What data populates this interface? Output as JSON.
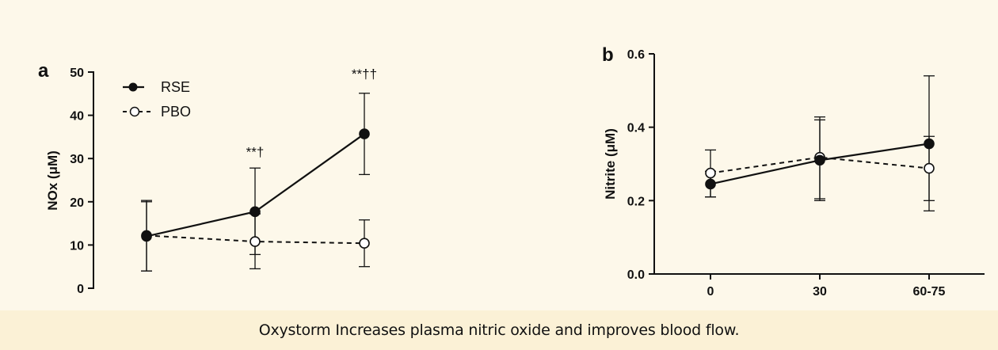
{
  "caption": "Oxystorm Increases plasma nitric oxide and improves blood flow.",
  "colors": {
    "background": "#fdf8ea",
    "caption_bar": "#fbf1d6",
    "ink": "#111111"
  },
  "chart_data": [
    {
      "panel": "a",
      "type": "line",
      "ylabel": "NOx (μM)",
      "ylim": [
        0,
        50
      ],
      "yticks": [
        "0",
        "10",
        "20",
        "30",
        "40",
        "50"
      ],
      "x": [
        0,
        1,
        2
      ],
      "xtick_labels": [],
      "legend_position": "top-left",
      "series": [
        {
          "name": "RSE",
          "style": "solid",
          "marker": "filled-circle",
          "values": [
            12,
            17.7,
            35.7
          ],
          "err_low": [
            4,
            7.8,
            26.3
          ],
          "err_high": [
            20.3,
            27.8,
            45.1
          ]
        },
        {
          "name": "PBO",
          "style": "dashed",
          "marker": "open-circle",
          "values": [
            12.2,
            10.8,
            10.4
          ],
          "err_low": [
            4,
            4.5,
            5
          ],
          "err_high": [
            20,
            17.2,
            15.8
          ]
        }
      ],
      "annotations": [
        {
          "x": 1,
          "y": 30.5,
          "text": "**†"
        },
        {
          "x": 2,
          "y": 48.5,
          "text": "**††"
        }
      ]
    },
    {
      "panel": "b",
      "type": "line",
      "ylabel": "Nitrite (μM)",
      "ylim": [
        0,
        0.6
      ],
      "yticks": [
        "0.0",
        "0.2",
        "0.4",
        "0.6"
      ],
      "x": [
        0,
        1,
        2
      ],
      "xtick_labels": [
        "0",
        "30",
        "60-75"
      ],
      "series": [
        {
          "style": "solid",
          "marker": "filled-circle",
          "values": [
            0.245,
            0.31,
            0.355
          ],
          "err_low": [
            0.21,
            0.205,
            0.2
          ],
          "err_high": [
            0.28,
            0.42,
            0.54
          ]
        },
        {
          "style": "dashed",
          "marker": "open-circle",
          "values": [
            0.275,
            0.318,
            0.288
          ],
          "err_low": [
            0.21,
            0.2,
            0.172
          ],
          "err_high": [
            0.338,
            0.428,
            0.375
          ]
        }
      ]
    }
  ]
}
